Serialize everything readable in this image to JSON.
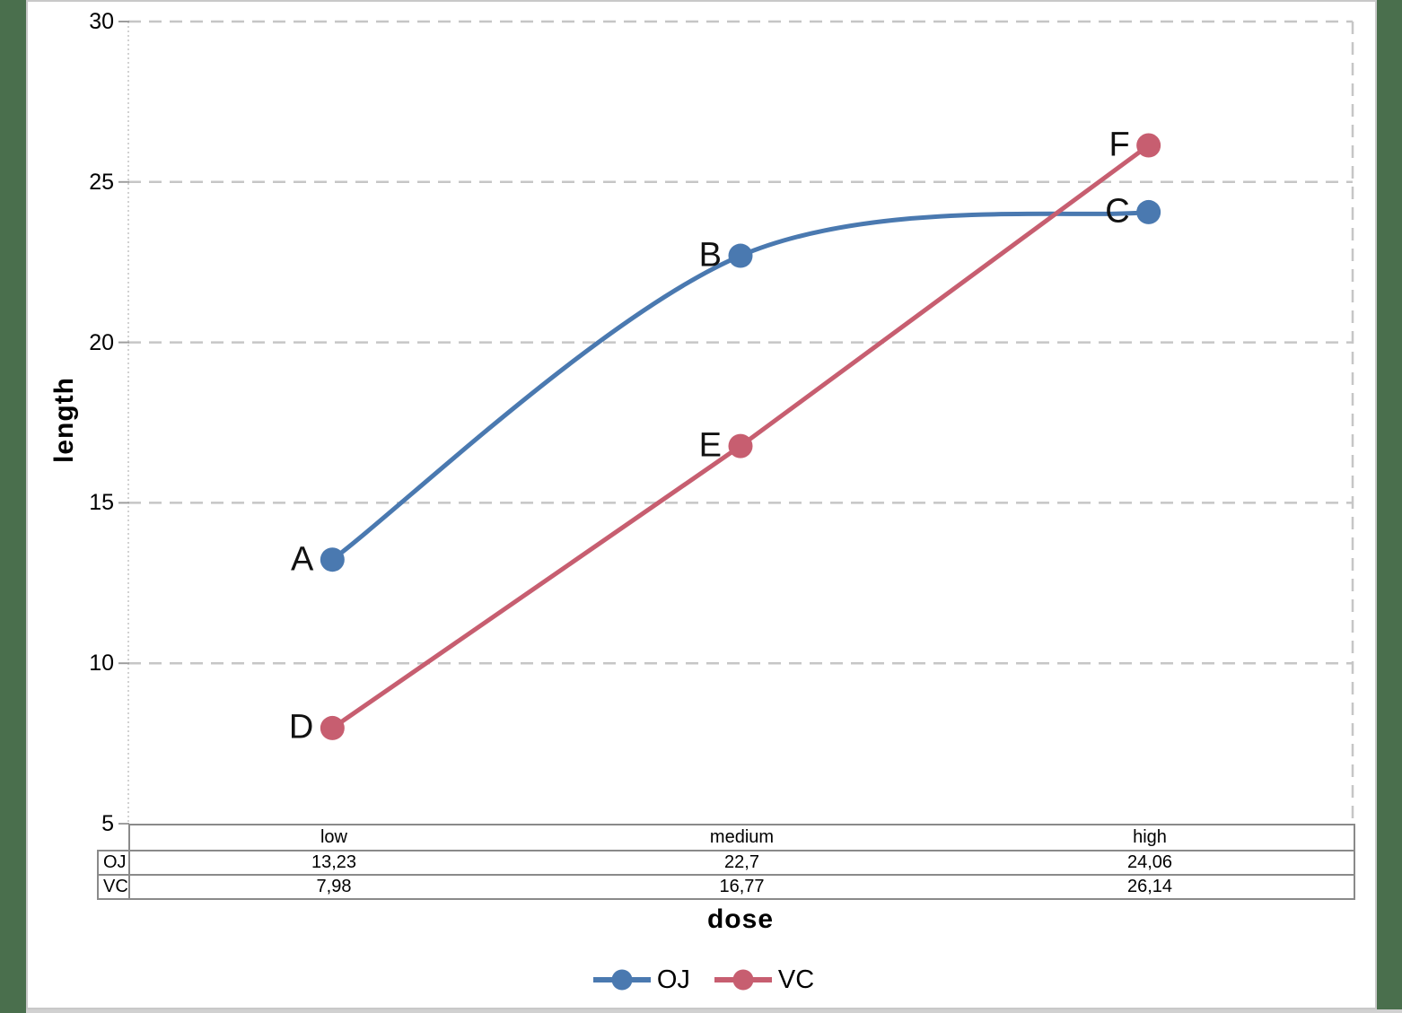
{
  "chart_data": {
    "type": "line",
    "categories": [
      "low",
      "medium",
      "high"
    ],
    "series": [
      {
        "name": "OJ",
        "values": [
          13.23,
          22.7,
          24.06
        ],
        "point_labels": [
          "A",
          "B",
          "C"
        ],
        "color": "#4a79b0",
        "smooth": true
      },
      {
        "name": "VC",
        "values": [
          7.98,
          16.77,
          26.14
        ],
        "point_labels": [
          "D",
          "E",
          "F"
        ],
        "color": "#c75e70",
        "smooth": false
      }
    ],
    "xlabel": "dose",
    "ylabel": "length",
    "ylim": [
      5,
      30
    ],
    "yticks": [
      5,
      10,
      15,
      20,
      25,
      30
    ],
    "grid": "horizontal dashed gridlines, dashed right plot border",
    "legend_position": "bottom"
  },
  "data_table": {
    "column_headers": [
      "low",
      "medium",
      "high"
    ],
    "rows": [
      {
        "label": "OJ",
        "values": [
          "13,23",
          "22,7",
          "24,06"
        ]
      },
      {
        "label": "VC",
        "values": [
          "7,98",
          "16,77",
          "26,14"
        ]
      }
    ]
  },
  "legend": {
    "items": [
      {
        "label": "OJ",
        "color": "#4a79b0"
      },
      {
        "label": "VC",
        "color": "#c75e70"
      }
    ]
  },
  "colors": {
    "oj_series": "#4a79b0",
    "vc_series": "#c75e70",
    "gridline": "#c6c6c6",
    "axis_line": "#d2d2d2",
    "tick_mark": "#9e9e9e",
    "table_border": "#8a8a8a",
    "page_margin_green": "#4a6f4d",
    "bottom_strip_gray": "#d1d1d1"
  }
}
